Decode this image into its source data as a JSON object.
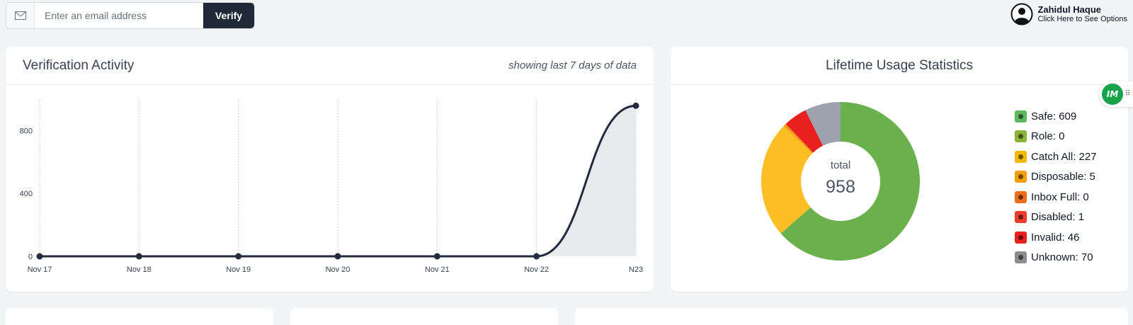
{
  "verify": {
    "placeholder": "Enter an email address",
    "button_label": "Verify"
  },
  "user": {
    "name": "Zahidul Haque",
    "hint": "Click Here to See Options"
  },
  "activity": {
    "title": "Verification Activity",
    "subtitle": "showing last 7 days of data"
  },
  "lifetime": {
    "title": "Lifetime Usage Statistics",
    "total_label": "total",
    "total_value": "958",
    "legend": [
      {
        "label": "Safe: 609",
        "color": "#5cb85c"
      },
      {
        "label": "Role: 0",
        "color": "#8bb33a"
      },
      {
        "label": "Catch All: 227",
        "color": "#f5b800"
      },
      {
        "label": "Disposable: 5",
        "color": "#f59e0b"
      },
      {
        "label": "Inbox Full: 0",
        "color": "#ef6c1a"
      },
      {
        "label": "Disabled: 1",
        "color": "#ee3b2b"
      },
      {
        "label": "Invalid: 46",
        "color": "#e8201e"
      },
      {
        "label": "Unknown: 70",
        "color": "#8c8c8c"
      }
    ]
  },
  "badge": {
    "label": "IM"
  },
  "chart_data": [
    {
      "type": "area",
      "categories": [
        "Nov 17",
        "Nov 18",
        "Nov 19",
        "Nov 20",
        "Nov 21",
        "Nov 22",
        "N23"
      ],
      "series": [
        {
          "values": [
            0,
            0,
            0,
            0,
            0,
            0,
            958
          ]
        }
      ],
      "yticks": [
        0,
        400,
        800
      ],
      "ylim": [
        0,
        1000
      ],
      "grid": "vertical-dotted",
      "colors": {
        "line": "#252a3f",
        "fill": "#e9eaec"
      }
    },
    {
      "type": "pie",
      "style": "donut",
      "labels": [
        "Safe",
        "Role",
        "Catch All",
        "Disposable",
        "Inbox Full",
        "Disabled",
        "Invalid",
        "Unknown"
      ],
      "values": [
        609,
        0,
        227,
        5,
        0,
        1,
        46,
        70
      ],
      "colors": [
        "#6ab04c",
        "#8bb33a",
        "#fbbf24",
        "#f59e0b",
        "#ef6c1a",
        "#ee3b2b",
        "#e8201e",
        "#9ca3af"
      ]
    }
  ]
}
